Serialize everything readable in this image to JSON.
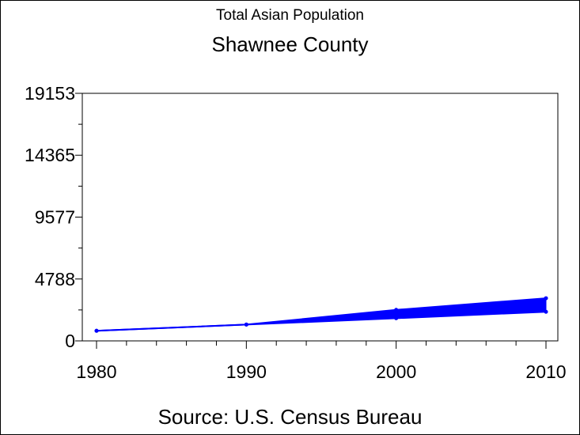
{
  "chart_data": {
    "type": "area",
    "subtitle": "Total Asian Population",
    "title": "Shawnee County",
    "source": "Source: U.S. Census Bureau",
    "xlabel": "",
    "ylabel": "",
    "x": [
      1980,
      1990,
      2000,
      2010
    ],
    "xlim": [
      1980,
      2010
    ],
    "ylim": [
      0,
      19153
    ],
    "y_ticks": [
      0,
      4788,
      9577,
      14365,
      19153
    ],
    "x_ticks": [
      1980,
      1990,
      2000,
      2010
    ],
    "series": [
      {
        "values": [
          780,
          1260,
          2400,
          3300
        ]
      },
      {
        "values": [
          780,
          1260,
          1750,
          2250
        ]
      }
    ],
    "band": {
      "upper": [
        780,
        1260,
        2400,
        3300
      ],
      "lower": [
        780,
        1260,
        1750,
        2250
      ],
      "from": 1990
    },
    "grid": false,
    "legend": "none",
    "color": "#0000ff"
  }
}
